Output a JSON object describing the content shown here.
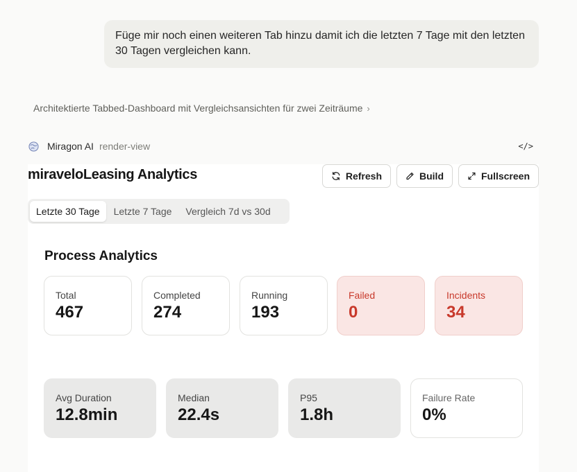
{
  "chat": {
    "user_message": "Füge mir noch einen weiteren Tab hinzu damit ich die letzten 7 Tage mit den letzten 30 Tagen vergleichen kann.",
    "reasoning_summary": "Architektierte Tabbed-Dashboard mit Vergleichsansichten für zwei Zeiträume"
  },
  "tool": {
    "name": "Miragon AI",
    "tag": "render-view",
    "code_icon": "</>"
  },
  "dashboard": {
    "title": "miraveloLeasing Analytics",
    "buttons": {
      "refresh": "Refresh",
      "build": "Build",
      "fullscreen": "Fullscreen"
    },
    "tabs": [
      "Letzte 30 Tage",
      "Letzte 7 Tage",
      "Vergleich 7d vs 30d"
    ],
    "active_tab": "Letzte 30 Tage",
    "section_title": "Process Analytics",
    "stats": [
      {
        "label": "Total",
        "value": "467",
        "status": "normal"
      },
      {
        "label": "Completed",
        "value": "274",
        "status": "normal"
      },
      {
        "label": "Running",
        "value": "193",
        "status": "normal"
      },
      {
        "label": "Failed",
        "value": "0",
        "status": "error"
      },
      {
        "label": "Incidents",
        "value": "34",
        "status": "error"
      }
    ],
    "metrics": [
      {
        "label": "Avg Duration",
        "value": "12.8min"
      },
      {
        "label": "Median",
        "value": "22.4s"
      },
      {
        "label": "P95",
        "value": "1.8h"
      },
      {
        "label": "Failure Rate",
        "value": "0%"
      }
    ]
  },
  "colors": {
    "error": "#c8392b",
    "error_bg": "#fae6e4",
    "muted_card": "#e9e9e8"
  }
}
